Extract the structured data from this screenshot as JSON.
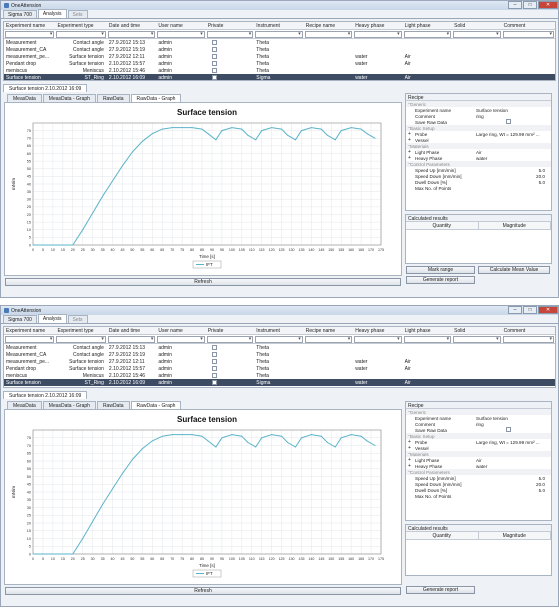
{
  "window": {
    "title": "OneAttension"
  },
  "top_tabs": [
    "Sigma 700",
    "Analysis",
    "Sets"
  ],
  "columns": [
    "Experiment name",
    "Experiment type",
    "Date and time",
    "User name",
    "Private",
    "Instrument",
    "Recipe name",
    "Heavy phase",
    "Light phase",
    "Solid",
    "Comment"
  ],
  "rows": [
    {
      "name": "Measurement",
      "type": "Contact angle",
      "date": "27.9.2012 15:13",
      "user": "admin",
      "private": true,
      "instrument": "Theta",
      "recipe": "",
      "heavy": "",
      "light": "",
      "solid": "",
      "comment": ""
    },
    {
      "name": "Measurement_CA",
      "type": "Contact angle",
      "date": "27.9.2012 15:19",
      "user": "admin",
      "private": true,
      "instrument": "Theta",
      "recipe": "",
      "heavy": "",
      "light": "",
      "solid": "",
      "comment": ""
    },
    {
      "name": "measurement_pe...",
      "type": "Surface tension",
      "date": "27.9.2012 12:11",
      "user": "admin",
      "private": true,
      "instrument": "Theta",
      "recipe": "",
      "heavy": "water",
      "light": "Air",
      "solid": "",
      "comment": ""
    },
    {
      "name": "Pendant drop",
      "type": "Surface tension",
      "date": "2.10.2012 15:57",
      "user": "admin",
      "private": true,
      "instrument": "Theta",
      "recipe": "",
      "heavy": "water",
      "light": "Air",
      "solid": "",
      "comment": ""
    },
    {
      "name": "meniscus",
      "type": "Meniscus",
      "date": "2.10.2012 15:46",
      "user": "admin",
      "private": true,
      "instrument": "Theta",
      "recipe": "",
      "heavy": "",
      "light": "",
      "solid": "",
      "comment": ""
    },
    {
      "name": "Surface tension",
      "type": "ST_Ring",
      "date": "2.10.2012 16:09",
      "user": "admin",
      "private": true,
      "instrument": "Sigma",
      "recipe": "",
      "heavy": "water",
      "light": "Air",
      "solid": "",
      "comment": ""
    }
  ],
  "doc_tab": "Surface tension 2.10.2012 16:09",
  "content_tabs": [
    "MeasData",
    "MeasData - Graph",
    "RawData",
    "RawData - Graph"
  ],
  "refresh_label": "Refresh",
  "recipe": {
    "title": "Recipe",
    "rows": [
      {
        "kind": "cat",
        "label": "Generic"
      },
      {
        "kind": "prop",
        "label": "Experiment name",
        "value": "Surface tension"
      },
      {
        "kind": "prop",
        "label": "Comment",
        "value": "ring"
      },
      {
        "kind": "prop",
        "label": "Save Raw Data",
        "value": "",
        "check": true
      },
      {
        "kind": "cat",
        "label": "Basic Setup"
      },
      {
        "kind": "prop",
        "label": "Probe",
        "value": "Large ring, Wt = 129.99 mm² ...",
        "expand": true
      },
      {
        "kind": "prop",
        "label": "Vessel",
        "value": "",
        "expand": true
      },
      {
        "kind": "cat",
        "label": "Materials"
      },
      {
        "kind": "prop",
        "label": "Light Phase",
        "value": "Air",
        "expand": true
      },
      {
        "kind": "prop",
        "label": "Heavy Phase",
        "value": "water",
        "expand": true
      },
      {
        "kind": "cat",
        "label": "Control Parameters"
      },
      {
        "kind": "prop",
        "label": "Speed Up [mm/min]",
        "value": "5.0",
        "num": true
      },
      {
        "kind": "prop",
        "label": "Speed Down [mm/min]",
        "value": "20.0",
        "num": true
      },
      {
        "kind": "prop",
        "label": "Dwell Down [%]",
        "value": "5.0",
        "num": true
      },
      {
        "kind": "prop",
        "label": "Max No. of Points",
        "value": "",
        "num": true
      }
    ]
  },
  "calculated": {
    "title": "Calculated results",
    "headers": [
      "Quantity",
      "Magnitude"
    ]
  },
  "buttons": {
    "markrange": "Mark range",
    "calc_mean": "Calculate Mean Value",
    "report": "Generate report"
  },
  "chart_data": {
    "type": "line",
    "title": "Surface tension",
    "xlabel": "Time [s]",
    "ylabel": "mN/m",
    "xlim": [
      0,
      175
    ],
    "ylim": [
      0,
      80
    ],
    "x_ticks": [
      0,
      5,
      10,
      15,
      20,
      25,
      30,
      35,
      40,
      45,
      50,
      55,
      60,
      65,
      70,
      75,
      80,
      85,
      90,
      95,
      100,
      105,
      110,
      115,
      120,
      125,
      130,
      135,
      140,
      145,
      150,
      155,
      160,
      165,
      170,
      175
    ],
    "y_ticks": [
      0,
      5,
      10,
      15,
      20,
      25,
      30,
      35,
      40,
      45,
      50,
      55,
      60,
      65,
      70,
      75
    ],
    "legend": "IFT",
    "line_color": "#5bb3c9",
    "x": [
      0,
      20,
      25,
      30,
      35,
      40,
      45,
      50,
      55,
      60,
      65,
      70,
      75,
      80,
      85,
      88,
      92,
      95,
      100,
      105,
      108,
      112,
      115,
      120,
      125,
      128,
      132,
      135,
      140,
      145,
      148,
      152,
      155,
      160,
      165,
      168,
      172
    ],
    "y": [
      0,
      0,
      10,
      21,
      32,
      42,
      52,
      61,
      68,
      73,
      76,
      77,
      77,
      77,
      76,
      73,
      69,
      75,
      77,
      76,
      72,
      69,
      75,
      77,
      76,
      72,
      69,
      75,
      77,
      76,
      72,
      69,
      75,
      77,
      76,
      73,
      70
    ]
  }
}
